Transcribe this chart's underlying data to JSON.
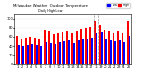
{
  "title": "Milwaukee Weather  Outdoor Temperature",
  "subtitle": "Daily High/Low",
  "high_color": "#ff0000",
  "low_color": "#0000ff",
  "background_color": "#ffffff",
  "dashed_lines": [
    17,
    18
  ],
  "ylim": [
    0,
    110
  ],
  "yticks": [
    0,
    20,
    40,
    60,
    80,
    100
  ],
  "days": [
    1,
    2,
    3,
    4,
    5,
    6,
    7,
    8,
    9,
    10,
    11,
    12,
    13,
    14,
    15,
    16,
    17,
    18,
    19,
    20,
    21,
    22,
    23,
    24,
    25
  ],
  "highs": [
    62,
    55,
    58,
    60,
    58,
    56,
    75,
    72,
    65,
    68,
    70,
    72,
    68,
    72,
    78,
    80,
    82,
    95,
    85,
    75,
    72,
    68,
    72,
    68,
    95
  ],
  "lows": [
    42,
    40,
    42,
    44,
    42,
    40,
    48,
    46,
    44,
    48,
    50,
    52,
    46,
    52,
    54,
    56,
    58,
    68,
    70,
    54,
    52,
    50,
    52,
    48,
    62
  ]
}
